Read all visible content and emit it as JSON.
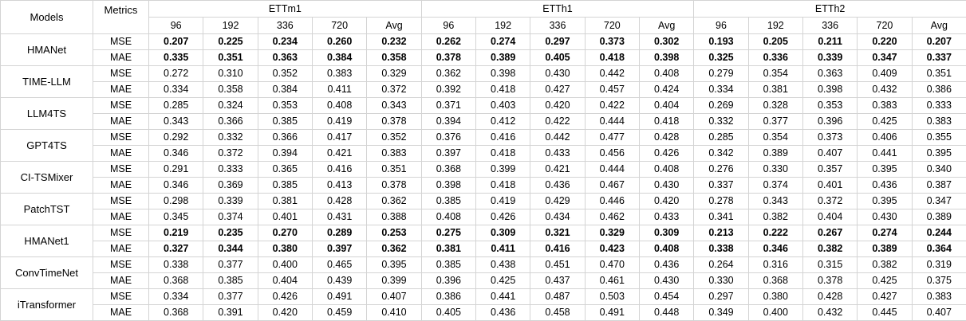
{
  "header": {
    "models_label": "Models",
    "metrics_label": "Metrics",
    "datasets": [
      "ETTm1",
      "ETTh1",
      "ETTh2"
    ],
    "horizons": [
      "96",
      "192",
      "336",
      "720",
      "Avg"
    ]
  },
  "rows": [
    {
      "model": "HMANet",
      "bold": true,
      "metrics": [
        {
          "name": "MSE",
          "values": [
            "0.207",
            "0.225",
            "0.234",
            "0.260",
            "0.232",
            "0.262",
            "0.274",
            "0.297",
            "0.373",
            "0.302",
            "0.193",
            "0.205",
            "0.211",
            "0.220",
            "0.207"
          ]
        },
        {
          "name": "MAE",
          "values": [
            "0.335",
            "0.351",
            "0.363",
            "0.384",
            "0.358",
            "0.378",
            "0.389",
            "0.405",
            "0.418",
            "0.398",
            "0.325",
            "0.336",
            "0.339",
            "0.347",
            "0.337"
          ]
        }
      ]
    },
    {
      "model": "TIME-LLM",
      "bold": false,
      "metrics": [
        {
          "name": "MSE",
          "values": [
            "0.272",
            "0.310",
            "0.352",
            "0.383",
            "0.329",
            "0.362",
            "0.398",
            "0.430",
            "0.442",
            "0.408",
            "0.279",
            "0.354",
            "0.363",
            "0.409",
            "0.351"
          ]
        },
        {
          "name": "MAE",
          "values": [
            "0.334",
            "0.358",
            "0.384",
            "0.411",
            "0.372",
            "0.392",
            "0.418",
            "0.427",
            "0.457",
            "0.424",
            "0.334",
            "0.381",
            "0.398",
            "0.432",
            "0.386"
          ]
        }
      ]
    },
    {
      "model": "LLM4TS",
      "bold": false,
      "metrics": [
        {
          "name": "MSE",
          "values": [
            "0.285",
            "0.324",
            "0.353",
            "0.408",
            "0.343",
            "0.371",
            "0.403",
            "0.420",
            "0.422",
            "0.404",
            "0.269",
            "0.328",
            "0.353",
            "0.383",
            "0.333"
          ]
        },
        {
          "name": "MAE",
          "values": [
            "0.343",
            "0.366",
            "0.385",
            "0.419",
            "0.378",
            "0.394",
            "0.412",
            "0.422",
            "0.444",
            "0.418",
            "0.332",
            "0.377",
            "0.396",
            "0.425",
            "0.383"
          ]
        }
      ]
    },
    {
      "model": "GPT4TS",
      "bold": false,
      "metrics": [
        {
          "name": "MSE",
          "values": [
            "0.292",
            "0.332",
            "0.366",
            "0.417",
            "0.352",
            "0.376",
            "0.416",
            "0.442",
            "0.477",
            "0.428",
            "0.285",
            "0.354",
            "0.373",
            "0.406",
            "0.355"
          ]
        },
        {
          "name": "MAE",
          "values": [
            "0.346",
            "0.372",
            "0.394",
            "0.421",
            "0.383",
            "0.397",
            "0.418",
            "0.433",
            "0.456",
            "0.426",
            "0.342",
            "0.389",
            "0.407",
            "0.441",
            "0.395"
          ]
        }
      ]
    },
    {
      "model": "CI-TSMixer",
      "bold": false,
      "metrics": [
        {
          "name": "MSE",
          "values": [
            "0.291",
            "0.333",
            "0.365",
            "0.416",
            "0.351",
            "0.368",
            "0.399",
            "0.421",
            "0.444",
            "0.408",
            "0.276",
            "0.330",
            "0.357",
            "0.395",
            "0.340"
          ]
        },
        {
          "name": "MAE",
          "values": [
            "0.346",
            "0.369",
            "0.385",
            "0.413",
            "0.378",
            "0.398",
            "0.418",
            "0.436",
            "0.467",
            "0.430",
            "0.337",
            "0.374",
            "0.401",
            "0.436",
            "0.387"
          ]
        }
      ]
    },
    {
      "model": "PatchTST",
      "bold": false,
      "metrics": [
        {
          "name": "MSE",
          "values": [
            "0.298",
            "0.339",
            "0.381",
            "0.428",
            "0.362",
            "0.385",
            "0.419",
            "0.429",
            "0.446",
            "0.420",
            "0.278",
            "0.343",
            "0.372",
            "0.395",
            "0.347"
          ]
        },
        {
          "name": "MAE",
          "values": [
            "0.345",
            "0.374",
            "0.401",
            "0.431",
            "0.388",
            "0.408",
            "0.426",
            "0.434",
            "0.462",
            "0.433",
            "0.341",
            "0.382",
            "0.404",
            "0.430",
            "0.389"
          ]
        }
      ]
    },
    {
      "model": "HMANet1",
      "bold": true,
      "metrics": [
        {
          "name": "MSE",
          "values": [
            "0.219",
            "0.235",
            "0.270",
            "0.289",
            "0.253",
            "0.275",
            "0.309",
            "0.321",
            "0.329",
            "0.309",
            "0.213",
            "0.222",
            "0.267",
            "0.274",
            "0.244"
          ]
        },
        {
          "name": "MAE",
          "values": [
            "0.327",
            "0.344",
            "0.380",
            "0.397",
            "0.362",
            "0.381",
            "0.411",
            "0.416",
            "0.423",
            "0.408",
            "0.338",
            "0.346",
            "0.382",
            "0.389",
            "0.364"
          ]
        }
      ]
    },
    {
      "model": "ConvTimeNet",
      "bold": false,
      "metrics": [
        {
          "name": "MSE",
          "values": [
            "0.338",
            "0.377",
            "0.400",
            "0.465",
            "0.395",
            "0.385",
            "0.438",
            "0.451",
            "0.470",
            "0.436",
            "0.264",
            "0.316",
            "0.315",
            "0.382",
            "0.319"
          ]
        },
        {
          "name": "MAE",
          "values": [
            "0.368",
            "0.385",
            "0.404",
            "0.439",
            "0.399",
            "0.396",
            "0.425",
            "0.437",
            "0.461",
            "0.430",
            "0.330",
            "0.368",
            "0.378",
            "0.425",
            "0.375"
          ]
        }
      ]
    },
    {
      "model": "iTransformer",
      "bold": false,
      "metrics": [
        {
          "name": "MSE",
          "values": [
            "0.334",
            "0.377",
            "0.426",
            "0.491",
            "0.407",
            "0.386",
            "0.441",
            "0.487",
            "0.503",
            "0.454",
            "0.297",
            "0.380",
            "0.428",
            "0.427",
            "0.383"
          ]
        },
        {
          "name": "MAE",
          "values": [
            "0.368",
            "0.391",
            "0.420",
            "0.459",
            "0.410",
            "0.405",
            "0.436",
            "0.458",
            "0.491",
            "0.448",
            "0.349",
            "0.400",
            "0.432",
            "0.445",
            "0.407"
          ]
        }
      ]
    }
  ]
}
